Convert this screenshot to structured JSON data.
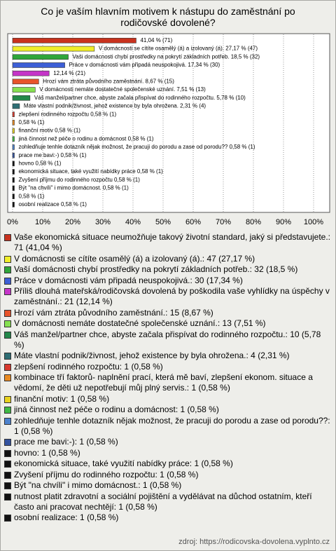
{
  "chart_data": {
    "type": "bar",
    "orientation": "horizontal",
    "title": "Co je vaším hlavním motivem k nástupu do zaměstnání po rodičovské dovolené?",
    "source": "zdroj: https://rodicovska-dovolena.vyplnto.cz",
    "categories": [
      "Vaše ekonomická situace neumožňuje takový životní standard, jaký si představujete.: 71 (41,04 %)",
      "V domácnosti se cítíte osamělý (á) a izolovaný (á).: 47 (27,17 %)",
      "Vaší domácnosti chybí prostředky na pokrytí základních potřeb.: 32 (18,5 %)",
      "Práce v domácnosti vám připadá neuspokojivá.: 30 (17,34 %)",
      "Příliš dlouhá mateřská/rodičovská dovolená by poškodila vaše vyhlídky na úspěchy v zaměstnání.: 21 (12,14 %)",
      "Hrozí vám ztráta původního zaměstnání.: 15 (8,67 %)",
      "V domácnosti nemáte dostatečné společenské uznání.: 13 (7,51 %)",
      "Váš manžel/partner chce, abyste začala přispívat do rodinného rozpočtu.: 10 (5,78 %)",
      "Máte vlastní podnik/živnost, jehož existence by byla ohrožena.: 4 (2,31 %)",
      "zlepšení rodinného rozpočtu: 1 (0,58 %)",
      "kombinace tří faktorů- naplnění prací, která mě baví, zlepšení ekonom. situace a vědomí, že děti už nepotřebují můj plný servis.: 1 (0,58 %)",
      "finanční motiv: 1 (0,58 %)",
      "jiná činnost než péče o rodinu a domácnost: 1 (0,58 %)",
      "zohledňuje tenhle dotazník nějak možnost, že pracuji do porodu a zase od porodu??: 1 (0,58 %)",
      "prace me bavi:-): 1 (0,58 %)",
      "hovno: 1 (0,58 %)",
      "ekonomická situace, také využití nabídky práce: 1 (0,58 %)",
      "Zvyšení příjmu do rodinného rozpočtu: 1 (0,58 %)",
      "Být \"na chvíli\" i mimo domácnost.: 1 (0,58 %)",
      "nutnost platit zdravotní a sociální pojištění a vydělávat na důchod ostatním, kteří často ani pracovat nechtějí: 1 (0,58 %)",
      "osobní realizace: 1 (0,58 %)"
    ],
    "values": [
      41.04,
      27.17,
      18.5,
      17.34,
      12.14,
      8.67,
      7.51,
      5.78,
      2.31,
      0.58,
      0.58,
      0.58,
      0.58,
      0.58,
      0.58,
      0.58,
      0.58,
      0.58,
      0.58,
      0.58,
      0.58
    ],
    "value_labels": [
      "41,04 % (71)",
      "V domácnosti se cítíte osamělý (á) a izolovaný (á). 27,17 % (47)",
      "Vaši domácnosti chybí prostředky na pokrytí základních potřeb. 18,5 % (32)",
      "Práce v domácnosti vám připadá neuspokojivá. 17,34 % (30)",
      "12,14 % (21)",
      "Hrozí vám ztráta původního zaměstnání. 8,67 % (15)",
      "V domácnosti nemáte dostatečné společenské uznání. 7,51 % (13)",
      "Váš manžel/partner chce, abyste začala přispívat do rodinného rozpočtu. 5,78 % (10)",
      "Máte vlastní podnik/živnost, jehož existence by byla ohrožena. 2,31 % (4)",
      "zlepšení rodinného rozpočtu 0,58 % (1)",
      "0,58 % (1)",
      "finanční motiv 0,58 % (1)",
      "jiná činnost než péče o rodinu a domácnost 0,58 % (1)",
      "zohledňuje tenhle dotazník nějak možnost, že pracuji do porodu a zase od porodu?? 0,58 % (1)",
      "prace me bavi:-) 0,58 % (1)",
      "hovno 0,58 % (1)",
      "ekonomická situace, také využití nabídky práce 0,58 % (1)",
      "Zvyšení příjmu do rodinného rozpočtu 0,58 % (1)",
      "Být \"na chvíli\" i mimo domácnost. 0,58 % (1)",
      "0,58 % (1)",
      "osobní realizace 0,58 % (1)"
    ],
    "colors": [
      "#c8321e",
      "#f0ee2a",
      "#2fa63a",
      "#3d5fd6",
      "#c535c8",
      "#e8542a",
      "#86e050",
      "#24884a",
      "#2e6e74",
      "#d83a2e",
      "#e88a22",
      "#e8d21e",
      "#3fba45",
      "#4d82cc",
      "#34539e",
      "#111111",
      "#111111",
      "#111111",
      "#111111",
      "#111111",
      "#111111"
    ],
    "xlim": [
      0,
      100
    ],
    "xticks": [
      {
        "value": 0,
        "label": "0%"
      },
      {
        "value": 10,
        "label": "10%"
      },
      {
        "value": 20,
        "label": "20%"
      },
      {
        "value": 30,
        "label": "30%"
      },
      {
        "value": 40,
        "label": "40%"
      },
      {
        "value": 50,
        "label": "50%"
      },
      {
        "value": 60,
        "label": "60%"
      },
      {
        "value": 70,
        "label": "70%"
      },
      {
        "value": 80,
        "label": "80%"
      },
      {
        "value": 90,
        "label": "90%"
      },
      {
        "value": 100,
        "label": "100%"
      }
    ],
    "grid": true,
    "legend": "bottom"
  }
}
